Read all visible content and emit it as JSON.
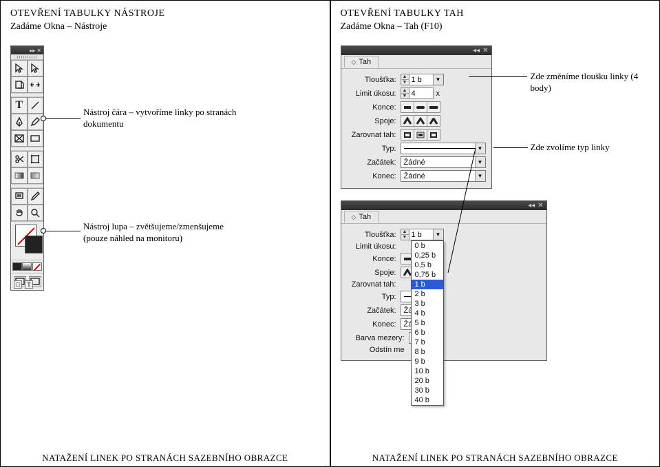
{
  "left": {
    "title": "OTEVŘENÍ TABULKY NÁSTROJE",
    "subtitle": "Zadáme Okna – Nástroje",
    "annot_line": "Nástroj čára – vytvoříme linky po stranách dokumentu",
    "annot_lupe": "Nástroj lupa – zvětšujeme/zmenšujeme (pouze náhled na monitoru)",
    "footer": "NATAŽENÍ LINEK PO STRANÁCH SAZEBNÍHO OBRAZCE"
  },
  "right": {
    "title": "OTEVŘENÍ TABULKY TAH",
    "subtitle": "Zadáme Okna – Tah (F10)",
    "annot_weight": "Zde změníme tloušku linky (4 body)",
    "annot_type": "Zde zvolíme typ linky",
    "footer": "NATAŽENÍ LINEK PO STRANÁCH SAZEBNÍHO OBRAZCE"
  },
  "tah1": {
    "tab": "Tah",
    "weight_lbl": "Tloušťka:",
    "weight_val": "1 b",
    "miter_lbl": "Limit úkosu:",
    "miter_val": "4",
    "miter_unit": "x",
    "caps_lbl": "Konce:",
    "joins_lbl": "Spoje:",
    "align_lbl": "Zarovnat tah:",
    "type_lbl": "Typ:",
    "start_lbl": "Začátek:",
    "start_val": "Žádné",
    "end_lbl": "Konec:",
    "end_val": "Žádné"
  },
  "tah2": {
    "tab": "Tah",
    "weight_lbl": "Tloušťka:",
    "weight_val": "1 b",
    "miter_lbl": "Limit úkosu:",
    "caps_lbl": "Konce:",
    "joins_lbl": "Spoje:",
    "align_lbl": "Zarovnat tah:",
    "type_lbl": "Typ:",
    "start_lbl": "Začátek:",
    "start_val": "Žádné",
    "end_lbl": "Konec:",
    "end_val": "Žádné",
    "gapcolor_lbl": "Barva mezery:",
    "gapcolor_val": "[Žá",
    "gaptint_lbl": "Odstín me",
    "options": [
      "0 b",
      "0,25 b",
      "0,5 b",
      "0,75 b",
      "1 b",
      "2 b",
      "3 b",
      "4 b",
      "5 b",
      "6 b",
      "7 b",
      "8 b",
      "9 b",
      "10 b",
      "20 b",
      "30 b",
      "40 b"
    ],
    "selected": "1 b"
  }
}
